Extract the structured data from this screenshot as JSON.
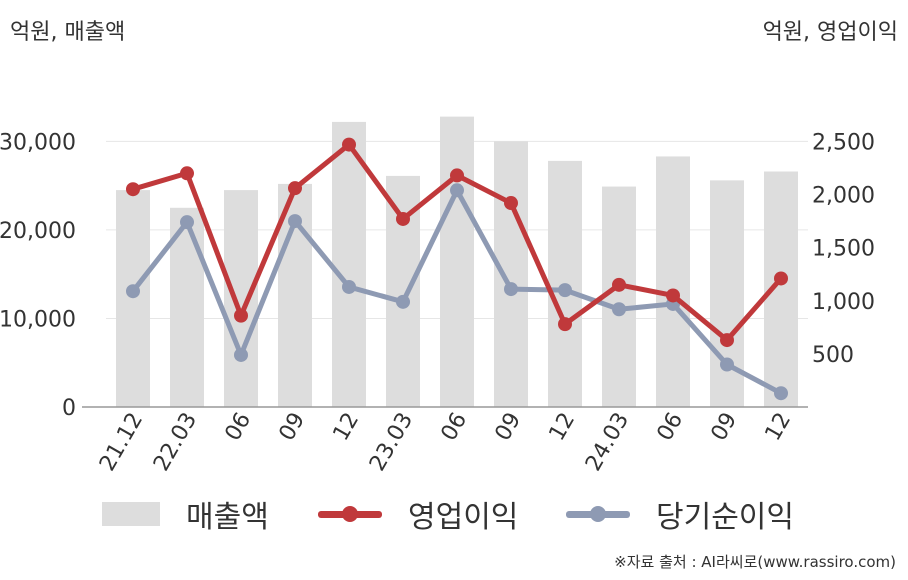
{
  "unit_left": "억원, 매출액",
  "unit_right": "억원, 영업이익",
  "source": "※자료 출처 : AI라씨로(www.rassiro.com)",
  "colors": {
    "bar": "#dddddd",
    "operating_profit": "#c0393b",
    "net_income": "#8e9ab3",
    "axis": "#999999",
    "grid": "#e6e6e6"
  },
  "legend": [
    {
      "label": "매출액",
      "kind": "bar",
      "color": "#dddddd"
    },
    {
      "label": "영업이익",
      "kind": "line",
      "color": "#c0393b"
    },
    {
      "label": "당기순이익",
      "kind": "line",
      "color": "#8e9ab3"
    }
  ],
  "chart_data": {
    "type": "bar+line",
    "categories": [
      "21.12",
      "22.03",
      "06",
      "09",
      "12",
      "23.03",
      "06",
      "09",
      "12",
      "24.03",
      "06",
      "09",
      "12"
    ],
    "series": [
      {
        "name": "매출액",
        "type": "bar",
        "axis": "left",
        "values": [
          24500,
          22500,
          24500,
          25200,
          32200,
          26100,
          32800,
          30000,
          27800,
          24900,
          28300,
          25600,
          26600
        ]
      },
      {
        "name": "영업이익",
        "type": "line",
        "axis": "right",
        "values": [
          2050,
          2200,
          860,
          2060,
          2470,
          1770,
          2180,
          1920,
          780,
          1150,
          1050,
          630,
          1210
        ]
      },
      {
        "name": "당기순이익",
        "type": "line",
        "axis": "right",
        "values": [
          1090,
          1740,
          490,
          1750,
          1130,
          990,
          2040,
          1110,
          1100,
          920,
          970,
          400,
          130
        ]
      }
    ],
    "left_axis": {
      "ticks": [
        "0",
        "10,000",
        "20,000",
        "30,000"
      ],
      "tick_values": [
        0,
        10000,
        20000,
        30000
      ],
      "range": [
        0,
        37500
      ]
    },
    "right_axis": {
      "ticks": [
        "500",
        "1,000",
        "1,500",
        "2,000",
        "2,500"
      ],
      "tick_values": [
        500,
        1000,
        1500,
        2000,
        2500
      ],
      "range": [
        0,
        3125
      ]
    },
    "grid": true,
    "legend_position": "bottom"
  }
}
